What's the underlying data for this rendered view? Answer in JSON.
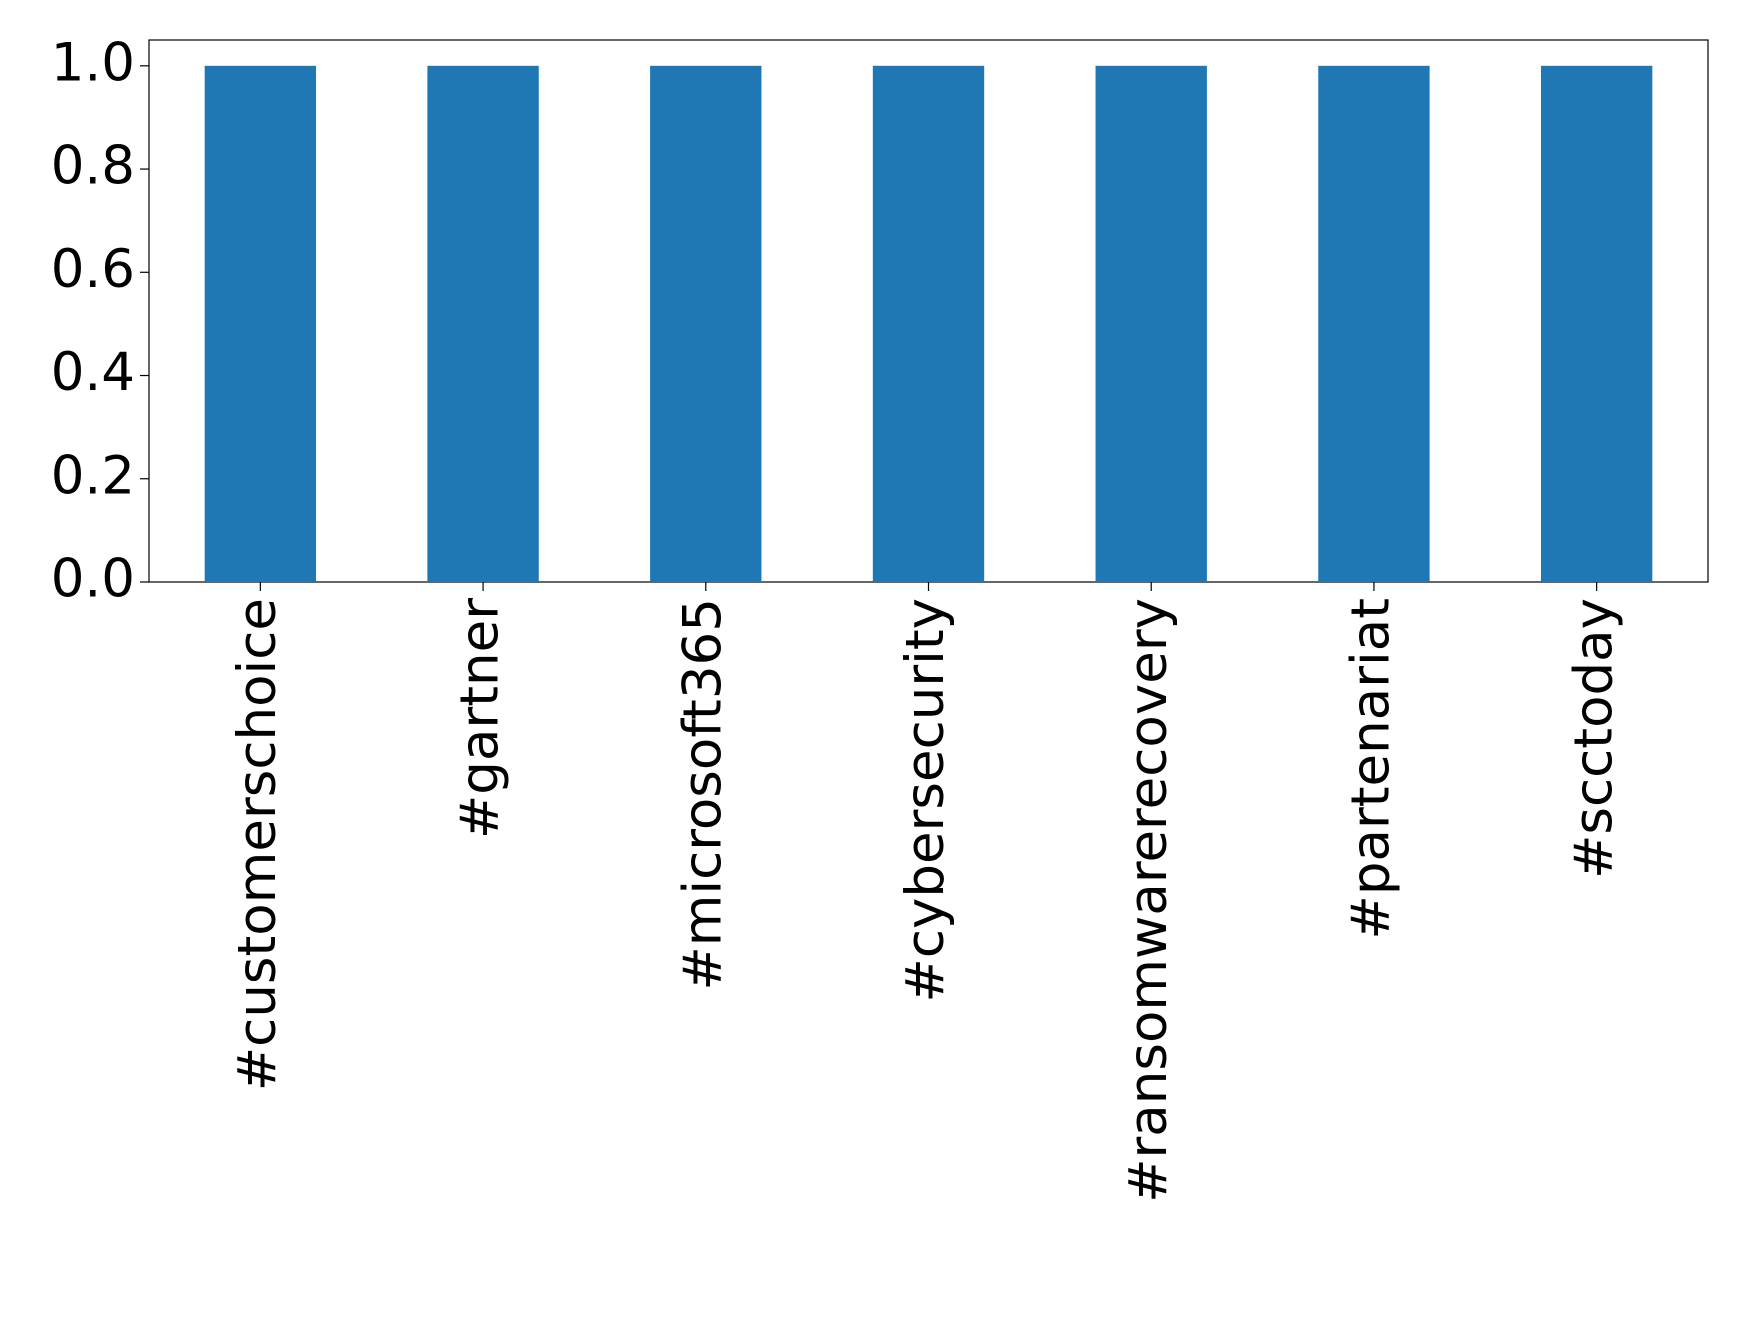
{
  "chart_data": {
    "type": "bar",
    "categories": [
      "#customerschoice",
      "#gartner",
      "#microsoft365",
      "#cybersecurity",
      "#ransomwarerecovery",
      "#partenariat",
      "#scctoday"
    ],
    "values": [
      1,
      1,
      1,
      1,
      1,
      1,
      1
    ],
    "color": "#1f77b4",
    "ylim": [
      0,
      1.05
    ],
    "yticks": [
      {
        "value": 0,
        "label": "0.0"
      },
      {
        "value": 0.2,
        "label": "0.2"
      },
      {
        "value": 0.4,
        "label": "0.4"
      },
      {
        "value": 0.6,
        "label": "0.6"
      },
      {
        "value": 0.8,
        "label": "0.8"
      },
      {
        "value": 1,
        "label": "1.0"
      }
    ]
  }
}
